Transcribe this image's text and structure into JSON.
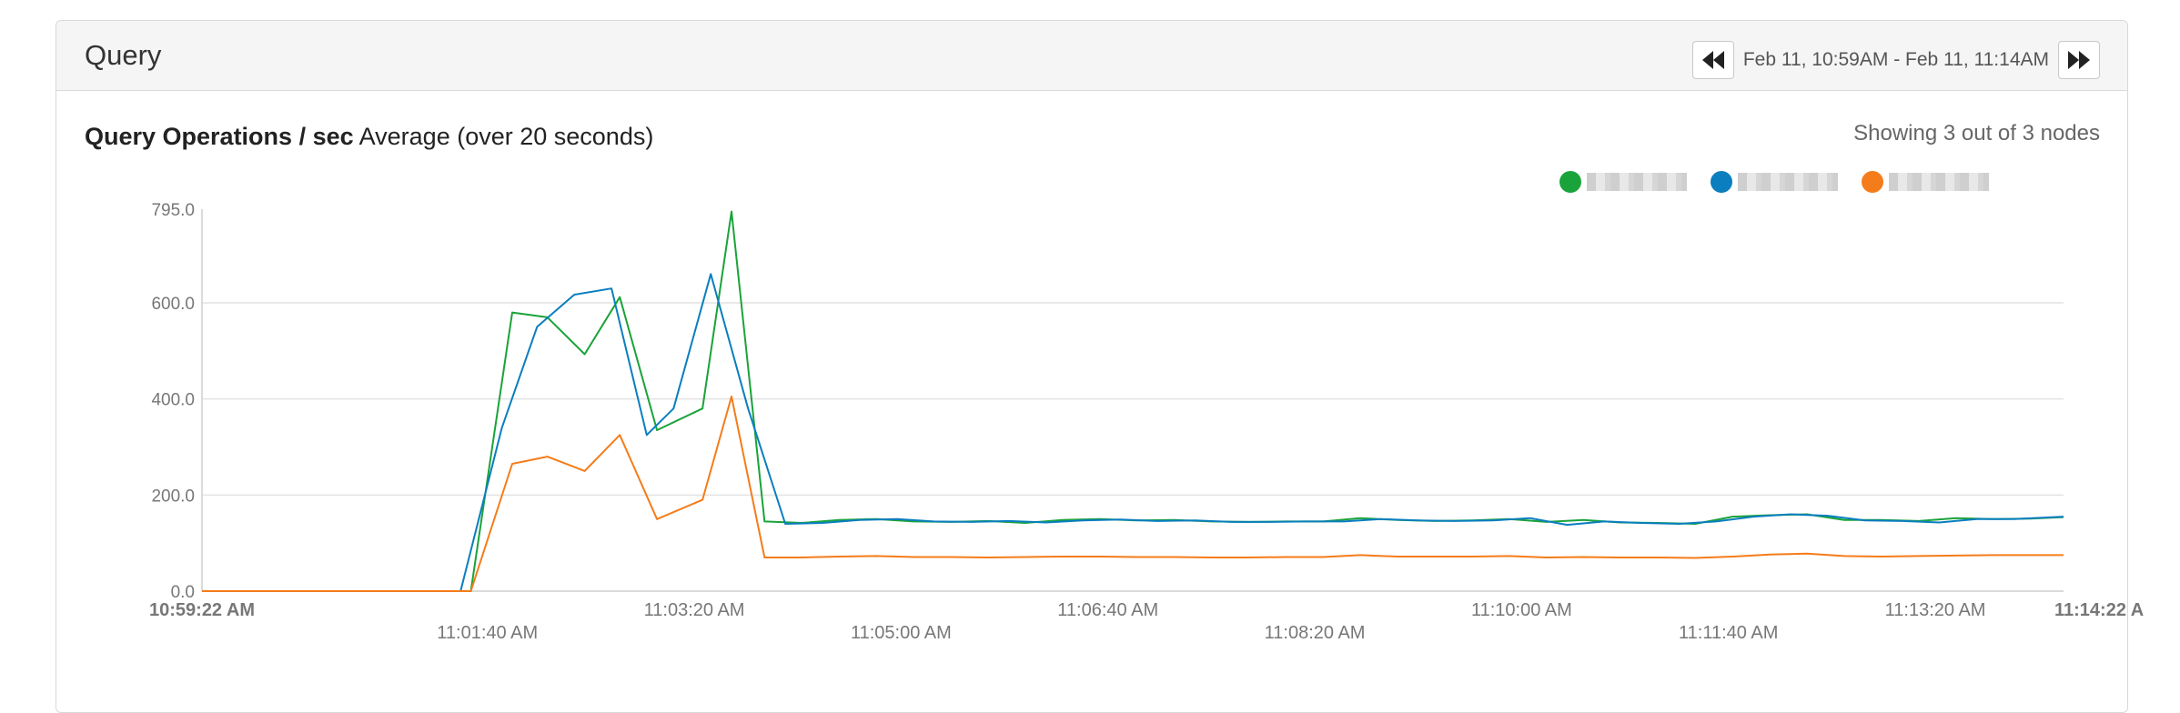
{
  "panel": {
    "title": "Query",
    "range_label": "Feb 11, 10:59AM - Feb 11, 11:14AM",
    "prev_icon": "rewind-icon",
    "next_icon": "fast-forward-icon"
  },
  "chart": {
    "title_bold": "Query Operations / sec",
    "title_suffix": "Average (over 20 seconds)",
    "nodes_count": "Showing 3 out of 3 nodes"
  },
  "legend": [
    {
      "name": "",
      "color": "#1aa33a"
    },
    {
      "name": "",
      "color": "#0a7ebf"
    },
    {
      "name": "",
      "color": "#f57c1a"
    }
  ],
  "chart_data": {
    "type": "line",
    "ylim": [
      0,
      795
    ],
    "y_ticks": [
      "795.0",
      "600.0",
      "400.0",
      "200.0",
      "0.0"
    ],
    "y_tick_values": [
      795,
      600,
      400,
      200,
      0
    ],
    "x_start": "10:59:22 AM",
    "x_end": "11:14:22 A",
    "x_tick_labels": [
      {
        "label": "11:01:40 AM",
        "t": 138
      },
      {
        "label": "11:03:20 AM",
        "t": 238
      },
      {
        "label": "11:05:00 AM",
        "t": 338
      },
      {
        "label": "11:06:40 AM",
        "t": 438
      },
      {
        "label": "11:08:20 AM",
        "t": 538
      },
      {
        "label": "11:10:00 AM",
        "t": 638
      },
      {
        "label": "11:11:40 AM",
        "t": 738
      },
      {
        "label": "11:13:20 AM",
        "t": 838
      }
    ],
    "x_range_seconds": [
      0,
      900
    ],
    "grid": true,
    "series": [
      {
        "color": "#1aa33a",
        "points": [
          [
            0,
            0
          ],
          [
            16,
            0
          ],
          [
            100,
            0
          ],
          [
            120,
            0
          ],
          [
            130,
            0
          ],
          [
            150,
            580
          ],
          [
            167,
            570
          ],
          [
            185,
            493
          ],
          [
            202,
            612
          ],
          [
            220,
            335
          ],
          [
            242,
            380
          ],
          [
            256,
            790
          ],
          [
            272,
            145
          ],
          [
            290,
            142
          ],
          [
            308,
            148
          ],
          [
            326,
            150
          ],
          [
            344,
            145
          ],
          [
            362,
            144
          ],
          [
            380,
            146
          ],
          [
            398,
            142
          ],
          [
            416,
            148
          ],
          [
            434,
            150
          ],
          [
            452,
            147
          ],
          [
            470,
            148
          ],
          [
            488,
            145
          ],
          [
            506,
            144
          ],
          [
            524,
            145
          ],
          [
            542,
            145
          ],
          [
            560,
            152
          ],
          [
            578,
            148
          ],
          [
            596,
            146
          ],
          [
            614,
            147
          ],
          [
            632,
            150
          ],
          [
            650,
            144
          ],
          [
            668,
            148
          ],
          [
            686,
            143
          ],
          [
            704,
            142
          ],
          [
            722,
            140
          ],
          [
            740,
            155
          ],
          [
            758,
            158
          ],
          [
            776,
            160
          ],
          [
            794,
            148
          ],
          [
            812,
            148
          ],
          [
            830,
            146
          ],
          [
            848,
            152
          ],
          [
            866,
            150
          ],
          [
            884,
            151
          ],
          [
            900,
            154
          ]
        ]
      },
      {
        "color": "#0a7ebf",
        "points": [
          [
            0,
            0
          ],
          [
            16,
            0
          ],
          [
            100,
            0
          ],
          [
            120,
            0
          ],
          [
            125,
            0
          ],
          [
            145,
            340
          ],
          [
            162,
            550
          ],
          [
            180,
            617
          ],
          [
            198,
            630
          ],
          [
            215,
            325
          ],
          [
            228,
            380
          ],
          [
            246,
            660
          ],
          [
            264,
            380
          ],
          [
            282,
            140
          ],
          [
            300,
            142
          ],
          [
            318,
            148
          ],
          [
            336,
            150
          ],
          [
            354,
            145
          ],
          [
            372,
            144
          ],
          [
            390,
            146
          ],
          [
            408,
            143
          ],
          [
            426,
            147
          ],
          [
            444,
            149
          ],
          [
            462,
            146
          ],
          [
            480,
            147
          ],
          [
            498,
            144
          ],
          [
            516,
            144
          ],
          [
            534,
            145
          ],
          [
            552,
            145
          ],
          [
            570,
            150
          ],
          [
            588,
            147
          ],
          [
            606,
            146
          ],
          [
            624,
            147
          ],
          [
            642,
            152
          ],
          [
            660,
            138
          ],
          [
            678,
            145
          ],
          [
            696,
            142
          ],
          [
            714,
            140
          ],
          [
            732,
            145
          ],
          [
            750,
            155
          ],
          [
            768,
            160
          ],
          [
            786,
            157
          ],
          [
            804,
            147
          ],
          [
            822,
            146
          ],
          [
            840,
            143
          ],
          [
            858,
            150
          ],
          [
            876,
            150
          ],
          [
            900,
            155
          ]
        ]
      },
      {
        "color": "#f57c1a",
        "points": [
          [
            0,
            0
          ],
          [
            16,
            0
          ],
          [
            100,
            0
          ],
          [
            120,
            0
          ],
          [
            130,
            0
          ],
          [
            150,
            265
          ],
          [
            167,
            280
          ],
          [
            185,
            250
          ],
          [
            202,
            325
          ],
          [
            220,
            150
          ],
          [
            242,
            190
          ],
          [
            256,
            405
          ],
          [
            272,
            70
          ],
          [
            290,
            70
          ],
          [
            308,
            72
          ],
          [
            326,
            73
          ],
          [
            344,
            71
          ],
          [
            362,
            71
          ],
          [
            380,
            70
          ],
          [
            398,
            71
          ],
          [
            416,
            72
          ],
          [
            434,
            72
          ],
          [
            452,
            71
          ],
          [
            470,
            71
          ],
          [
            488,
            70
          ],
          [
            506,
            70
          ],
          [
            524,
            71
          ],
          [
            542,
            71
          ],
          [
            560,
            75
          ],
          [
            578,
            72
          ],
          [
            596,
            72
          ],
          [
            614,
            72
          ],
          [
            632,
            73
          ],
          [
            650,
            70
          ],
          [
            668,
            71
          ],
          [
            686,
            70
          ],
          [
            704,
            70
          ],
          [
            722,
            69
          ],
          [
            740,
            72
          ],
          [
            758,
            76
          ],
          [
            776,
            78
          ],
          [
            794,
            73
          ],
          [
            812,
            72
          ],
          [
            830,
            73
          ],
          [
            848,
            74
          ],
          [
            866,
            75
          ],
          [
            884,
            75
          ],
          [
            900,
            75
          ]
        ]
      }
    ]
  }
}
